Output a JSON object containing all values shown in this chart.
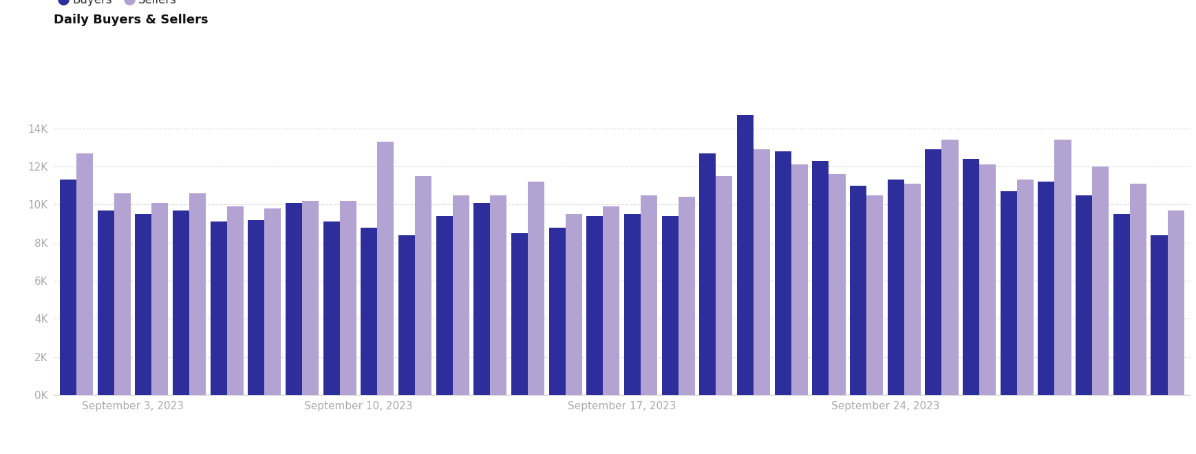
{
  "title": "Daily Buyers & Sellers",
  "legend_buyers": "Buyers",
  "legend_sellers": "Sellers",
  "buyer_color": "#2D2D9B",
  "seller_color": "#B3A3D3",
  "background_color": "#ffffff",
  "grid_color": "#d8d8d8",
  "ytick_labels": [
    "0K",
    "2K",
    "4K",
    "6K",
    "8K",
    "10K",
    "12K",
    "14K"
  ],
  "ytick_values": [
    0,
    2000,
    4000,
    6000,
    8000,
    10000,
    12000,
    14000
  ],
  "ylim": [
    0,
    15500
  ],
  "xtick_positions": [
    1.5,
    7.5,
    14.5,
    21.5
  ],
  "xtick_labels": [
    "September 3, 2023",
    "September 10, 2023",
    "September 17, 2023",
    "September 24, 2023"
  ],
  "buyers": [
    11300,
    9700,
    9500,
    9700,
    9100,
    9200,
    10100,
    9100,
    8800,
    8400,
    9400,
    10100,
    8500,
    8800,
    9400,
    9500,
    9400,
    12700,
    14700,
    12800,
    12300,
    11000,
    11300,
    12900,
    12400,
    10700,
    11200,
    10500,
    9500,
    8400
  ],
  "sellers": [
    12700,
    10600,
    10100,
    10600,
    9900,
    9800,
    10200,
    10200,
    13300,
    11500,
    10500,
    10500,
    11200,
    9500,
    9900,
    10500,
    10400,
    11500,
    12900,
    12100,
    11600,
    10500,
    11100,
    13400,
    12100,
    11300,
    13400,
    12000,
    11100,
    9700
  ]
}
